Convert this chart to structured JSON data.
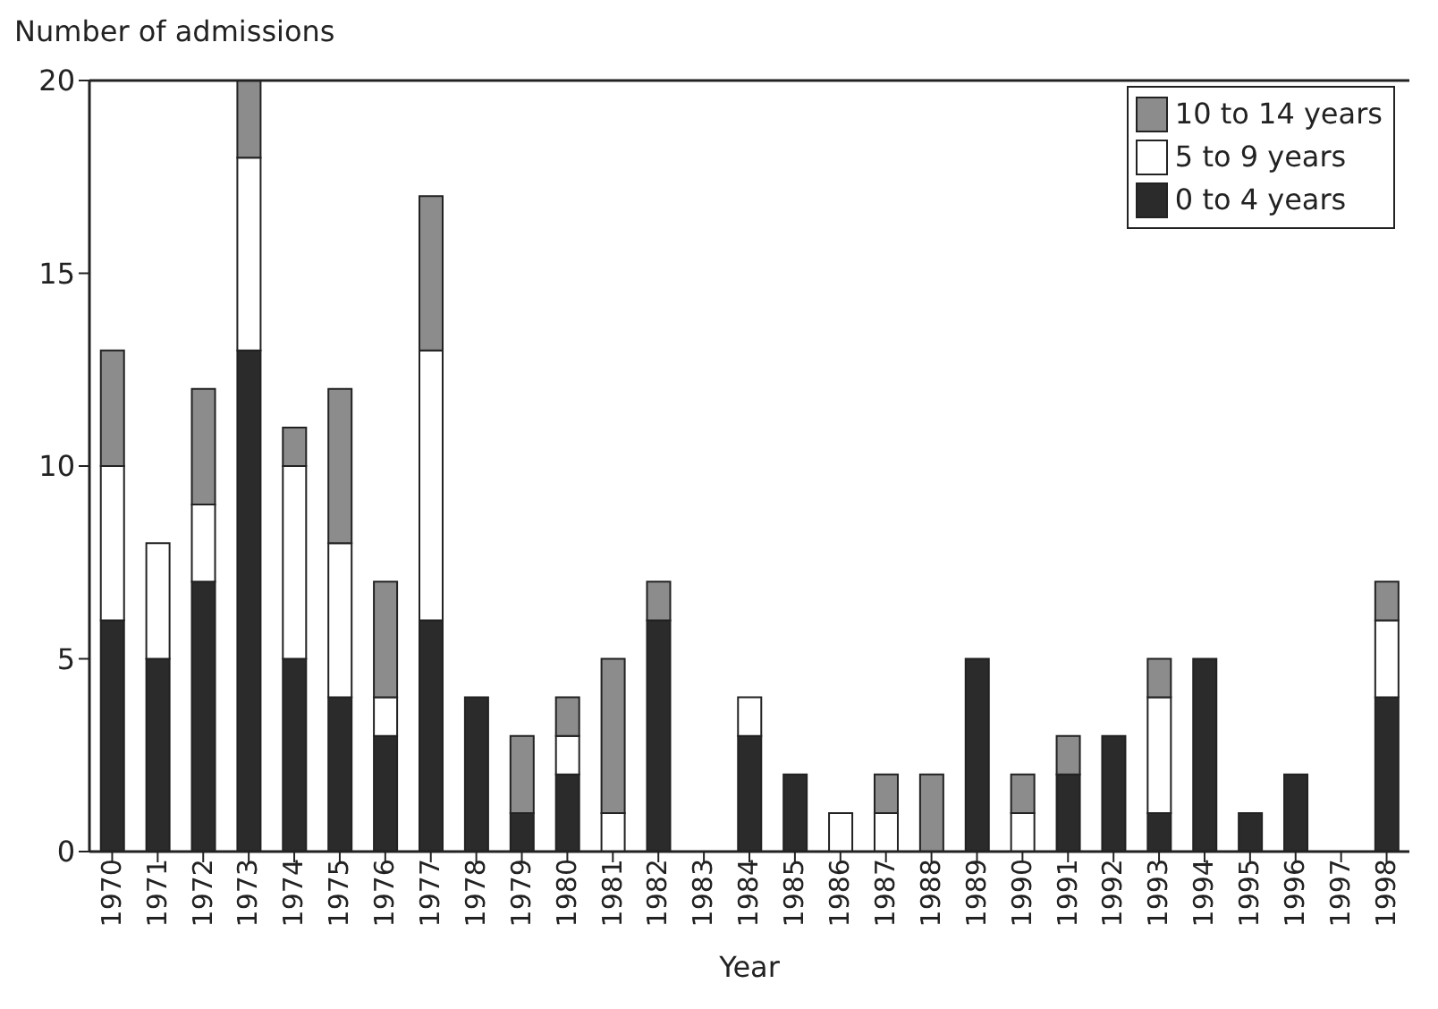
{
  "chart_data": {
    "type": "bar",
    "stacked": true,
    "xlabel": "Year",
    "ylabel": "Number of admissions",
    "categories": [
      "1970",
      "1971",
      "1972",
      "1973",
      "1974",
      "1975",
      "1976",
      "1977",
      "1978",
      "1979",
      "1980",
      "1981",
      "1982",
      "1983",
      "1984",
      "1985",
      "1986",
      "1987",
      "1988",
      "1989",
      "1990",
      "1991",
      "1992",
      "1993",
      "1994",
      "1995",
      "1996",
      "1997",
      "1998"
    ],
    "series": [
      {
        "name": "0 to 4 years",
        "color": "#2b2b2b",
        "values": [
          6,
          5,
          7,
          13,
          5,
          4,
          3,
          6,
          4,
          1,
          2,
          0,
          6,
          0,
          3,
          2,
          0,
          0,
          0,
          5,
          0,
          2,
          3,
          1,
          5,
          1,
          2,
          0,
          4
        ]
      },
      {
        "name": "5 to 9 years",
        "color": "#ffffff",
        "values": [
          4,
          3,
          2,
          5,
          5,
          4,
          1,
          7,
          0,
          0,
          1,
          1,
          0,
          0,
          1,
          0,
          1,
          1,
          0,
          0,
          1,
          0,
          0,
          3,
          0,
          0,
          0,
          0,
          2
        ]
      },
      {
        "name": "10 to 14 years",
        "color": "#8c8c8c",
        "values": [
          3,
          0,
          3,
          2,
          1,
          4,
          3,
          4,
          0,
          2,
          1,
          4,
          1,
          0,
          0,
          0,
          0,
          1,
          2,
          0,
          1,
          1,
          0,
          1,
          0,
          0,
          0,
          0,
          1
        ]
      }
    ],
    "ylim": [
      0,
      20
    ],
    "yticks": [
      0,
      5,
      10,
      15,
      20
    ],
    "grid": false,
    "legend": "top right"
  }
}
